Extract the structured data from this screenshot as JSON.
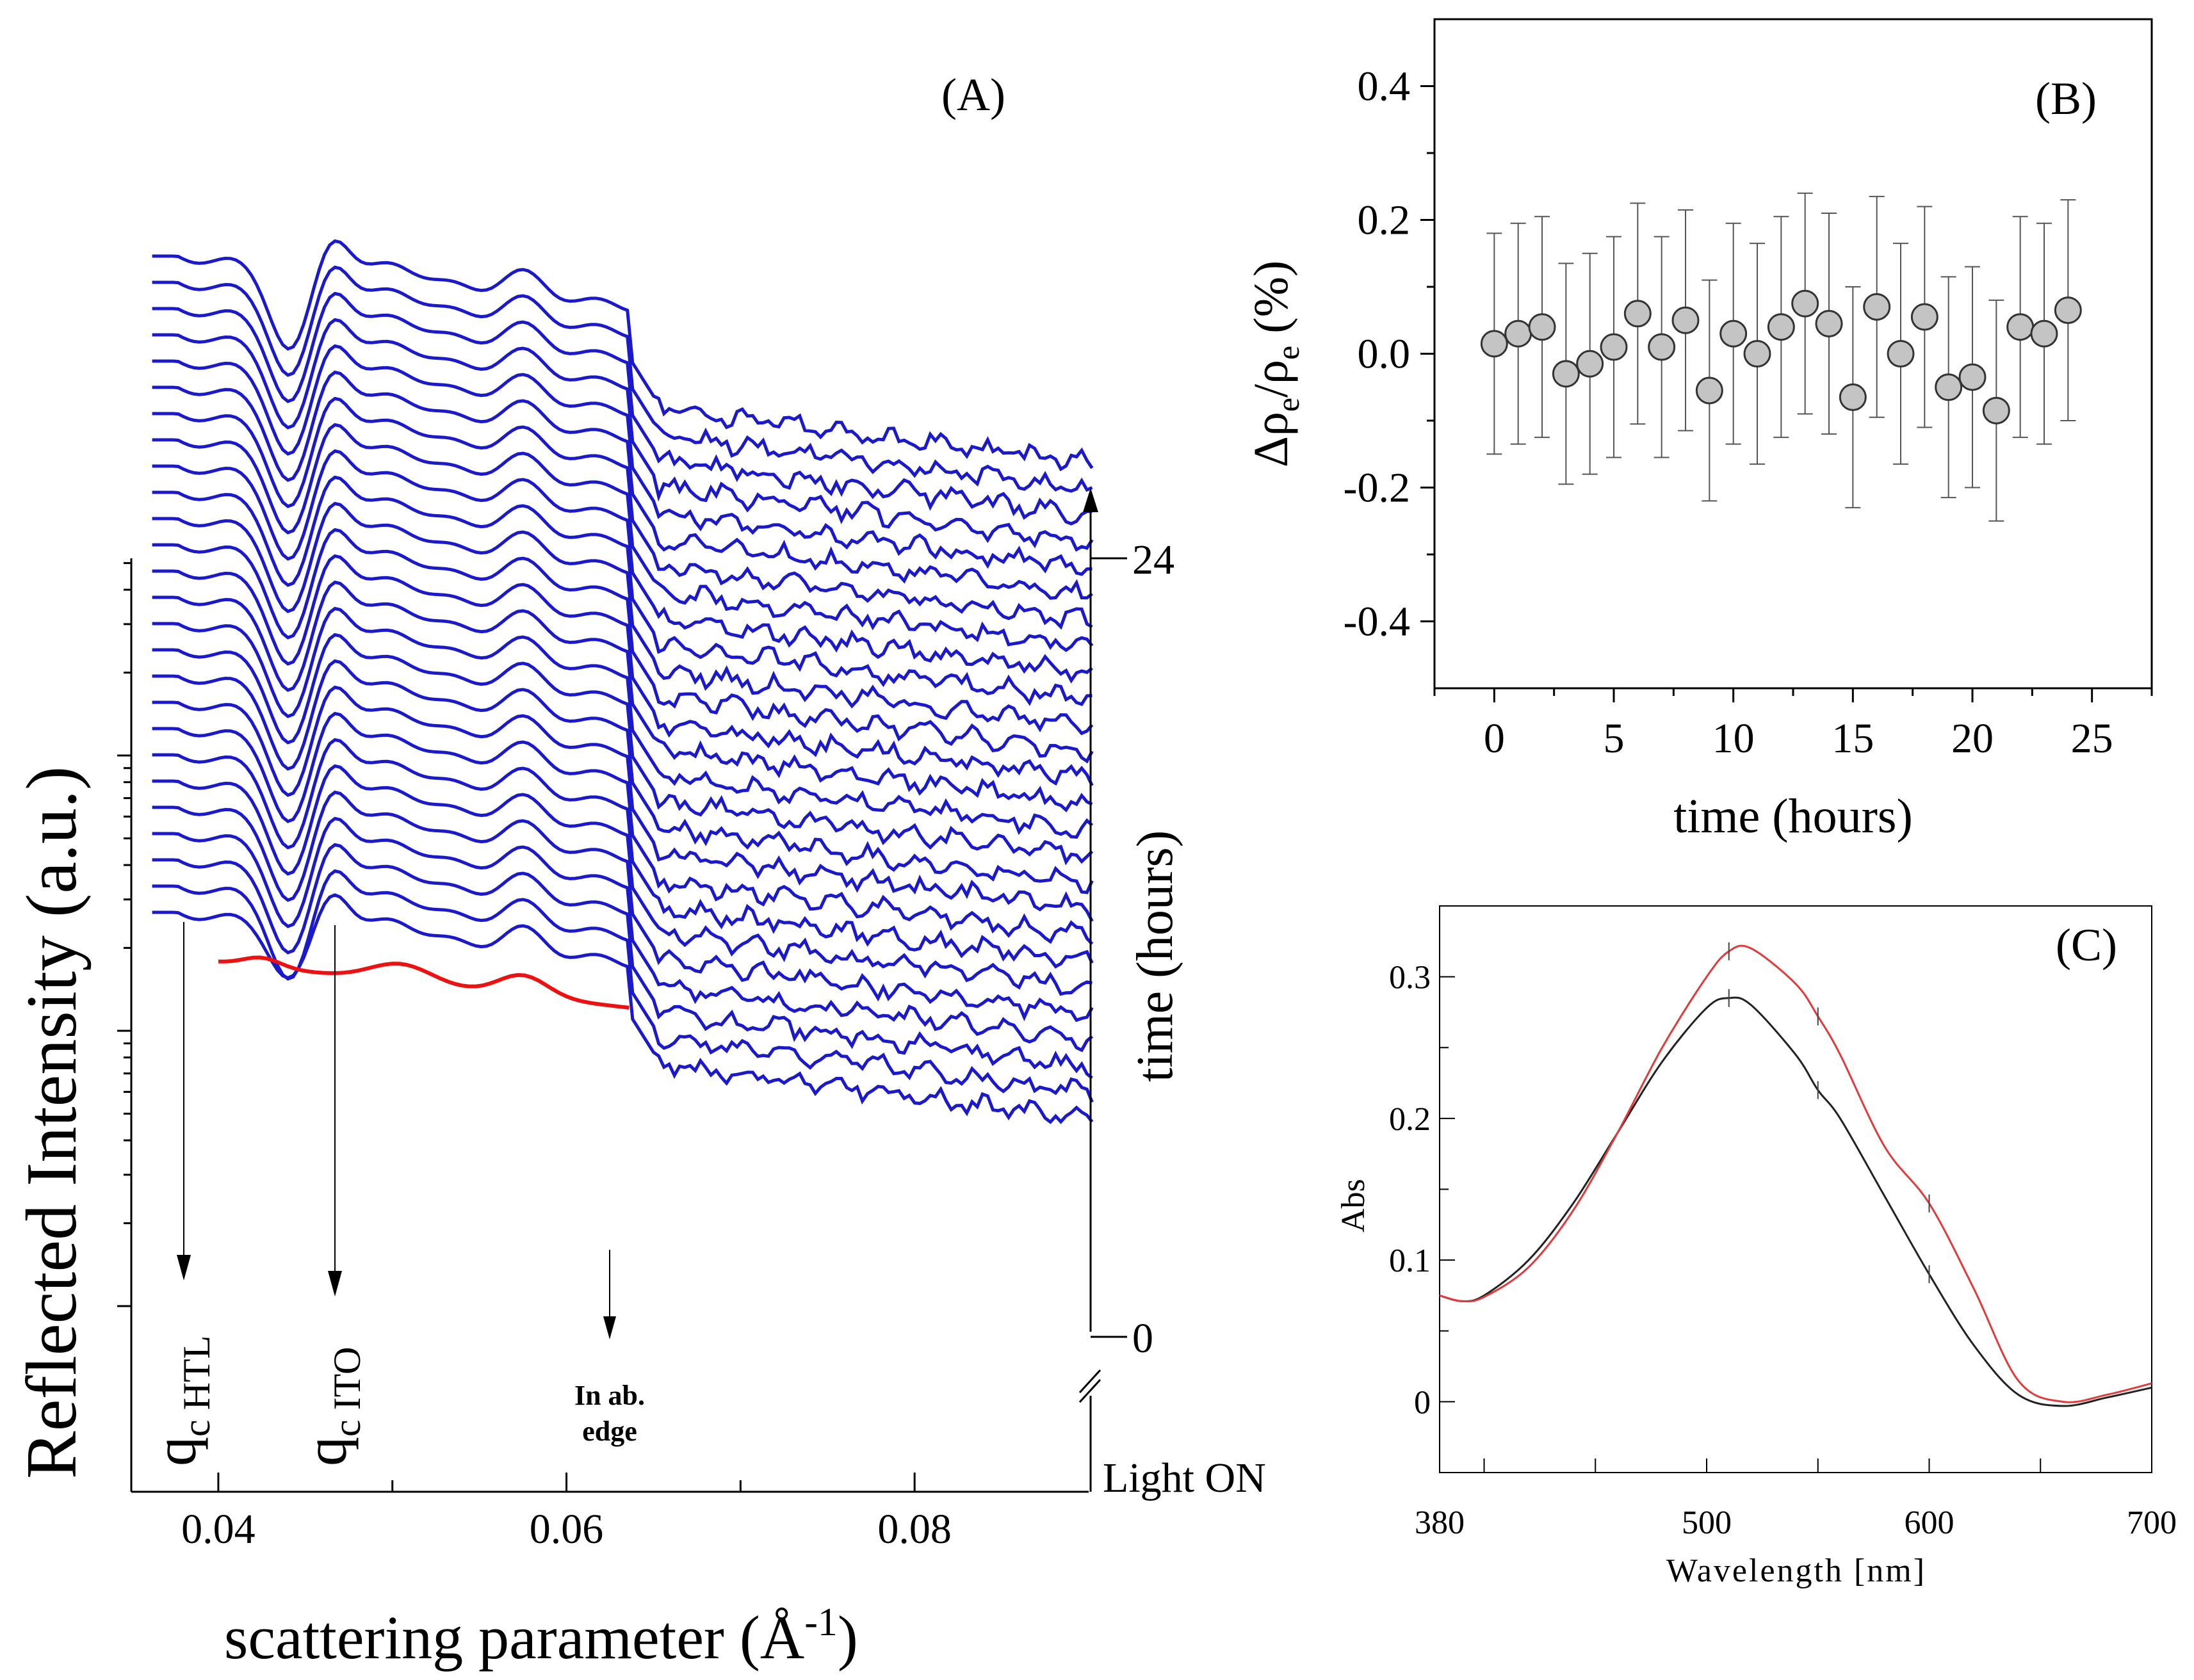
{
  "chart_data": [
    {
      "panel": "A",
      "type": "line",
      "panel_label": "(A)",
      "xlabel": "scattering parameter (Å",
      "xlabel_sup": "-1",
      "xlabel_close": ")",
      "ylabel": "Reflected Intensity (a.u.)",
      "xlim": [
        0.035,
        0.09
      ],
      "xticks": [
        0.04,
        0.06,
        0.08
      ],
      "xtick_labels": [
        "0.04",
        "0.06",
        "0.08"
      ],
      "y_scale": "log",
      "series_count": 26,
      "series_color": "#1a1acc",
      "fit_color": "#ee1111",
      "time_axis": {
        "label": "time (hours)",
        "tick_labels": [
          "0",
          "24"
        ],
        "light_label": "Light ON"
      },
      "annotations": [
        {
          "main": "q",
          "sub": "c HTL",
          "x": 0.0383
        },
        {
          "main": "q",
          "sub": "c ITO",
          "x": 0.0468
        },
        {
          "main": "In ab.",
          "line2": "edge",
          "x": 0.0632
        }
      ]
    },
    {
      "panel": "B",
      "type": "scatter",
      "panel_label": "(B)",
      "xlabel": "time (hours)",
      "ylabel": "Δρ",
      "ylabel_sub": "e",
      "ylabel_mid": "/ρ",
      "ylabel_sub2": "e",
      "ylabel_end": " (%)",
      "xlim": [
        -2.5,
        27.5
      ],
      "ylim": [
        -0.5,
        0.5
      ],
      "xticks": [
        0,
        5,
        10,
        15,
        20,
        25
      ],
      "xtick_labels": [
        "0",
        "5",
        "10",
        "15",
        "20",
        "25"
      ],
      "yticks": [
        -0.4,
        -0.2,
        0.0,
        0.2,
        0.4
      ],
      "ytick_labels": [
        "-0.4",
        "-0.2",
        "0.0",
        "0.2",
        "0.4"
      ],
      "x": [
        0,
        1,
        2,
        3,
        4,
        5,
        6,
        7,
        8,
        9,
        10,
        11,
        12,
        13,
        14,
        15,
        16,
        17,
        18,
        19,
        20,
        21,
        22,
        23,
        24
      ],
      "y": [
        0.015,
        0.03,
        0.04,
        -0.03,
        -0.015,
        0.01,
        0.06,
        0.01,
        0.05,
        -0.055,
        0.03,
        0.0,
        0.04,
        0.075,
        0.045,
        -0.065,
        0.07,
        0.0,
        0.055,
        -0.05,
        -0.035,
        -0.085,
        0.04,
        0.03,
        0.065
      ],
      "yerr": 0.165,
      "marker_color": "#c4c4c4"
    },
    {
      "panel": "C",
      "type": "line",
      "panel_label": "(C)",
      "xlabel": "Wavelength [nm]",
      "ylabel": "Abs",
      "xlim": [
        380,
        700
      ],
      "ylim": [
        -0.05,
        0.35
      ],
      "xtick_labels": [
        "380",
        "500",
        "600",
        "700"
      ],
      "ytick_labels": [
        "0",
        "0.1",
        "0.2",
        "0.3"
      ],
      "series": [
        {
          "name": "black",
          "color": "#222222",
          "x": [
            380,
            390,
            400,
            420,
            440,
            460,
            480,
            500,
            510,
            520,
            540,
            550,
            560,
            580,
            600,
            620,
            640,
            660,
            680,
            700
          ],
          "y": [
            0.075,
            0.071,
            0.075,
            0.1,
            0.14,
            0.19,
            0.24,
            0.278,
            0.285,
            0.28,
            0.245,
            0.22,
            0.2,
            0.145,
            0.09,
            0.04,
            0.005,
            -0.003,
            0.003,
            0.01
          ]
        },
        {
          "name": "red",
          "color": "#e23a3a",
          "x": [
            380,
            390,
            400,
            420,
            440,
            460,
            480,
            500,
            510,
            520,
            540,
            550,
            560,
            580,
            600,
            620,
            640,
            660,
            680,
            700
          ],
          "y": [
            0.075,
            0.071,
            0.074,
            0.095,
            0.135,
            0.19,
            0.25,
            0.3,
            0.318,
            0.32,
            0.295,
            0.272,
            0.245,
            0.18,
            0.14,
            0.08,
            0.015,
            0.0,
            0.005,
            0.013
          ]
        }
      ]
    }
  ]
}
